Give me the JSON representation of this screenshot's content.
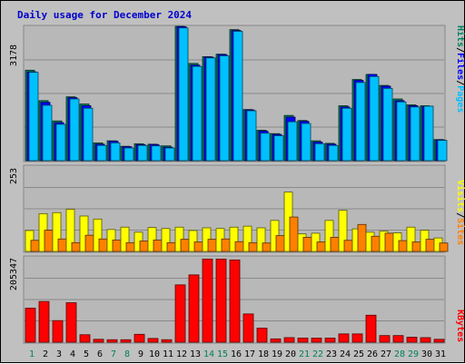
{
  "chart_data": {
    "type": "bar",
    "title": "Daily usage for December 2024",
    "categories": [
      "1",
      "2",
      "3",
      "4",
      "5",
      "6",
      "7",
      "8",
      "9",
      "10",
      "11",
      "12",
      "13",
      "14",
      "15",
      "16",
      "17",
      "18",
      "19",
      "20",
      "21",
      "22",
      "23",
      "24",
      "25",
      "26",
      "27",
      "28",
      "29",
      "30",
      "31"
    ],
    "weekend_days": [
      "1",
      "7",
      "8",
      "14",
      "15",
      "21",
      "22",
      "28",
      "29"
    ],
    "panels": [
      {
        "id": "top",
        "ymax_label": "3178",
        "ylim": [
          0,
          3178
        ],
        "right_label": [
          {
            "text": "Hits",
            "color": "#00805c"
          },
          {
            "text": "/",
            "color": "#000000"
          },
          {
            "text": "Files",
            "color": "#0000ff"
          },
          {
            "text": "/",
            "color": "#000000"
          },
          {
            "text": "Pages",
            "color": "#00c0ff"
          }
        ],
        "series": [
          {
            "name": "Hits",
            "color": "#00805c",
            "values": [
              2140,
              1420,
              940,
              1510,
              1340,
              420,
              470,
              340,
              400,
              390,
              350,
              3178,
              2300,
              2460,
              2520,
              3100,
              1210,
              720,
              640,
              1070,
              950,
              470,
              410,
              1300,
              1920,
              2040,
              1780,
              1460,
              1320,
              1300,
              500
            ]
          },
          {
            "name": "Files",
            "color": "#0000ff",
            "values": [
              2100,
              1380,
              900,
              1490,
              1300,
              390,
              460,
              330,
              380,
              380,
              320,
              3170,
              2260,
              2450,
              2510,
              3080,
              1200,
              700,
              620,
              1030,
              930,
              440,
              390,
              1270,
              1900,
              2040,
              1760,
              1420,
              1300,
              1280,
              490
            ]
          },
          {
            "name": "Pages",
            "color": "#00c0ff",
            "values": [
              2090,
              1310,
              860,
              1460,
              1240,
              360,
              420,
              300,
              360,
              350,
              300,
              3140,
              2230,
              2430,
              2480,
              3060,
              1180,
              650,
              590,
              920,
              880,
              400,
              360,
              1240,
              1850,
              1990,
              1710,
              1390,
              1270,
              1290,
              480
            ]
          }
        ]
      },
      {
        "id": "middle",
        "ymax_label": "253",
        "ylim": [
          0,
          253
        ],
        "right_label": [
          {
            "text": "Visits",
            "color": "#ffff00"
          },
          {
            "text": "/",
            "color": "#000000"
          },
          {
            "text": "Sites",
            "color": "#ff8000"
          }
        ],
        "series": [
          {
            "name": "Visits",
            "color": "#ffff00",
            "values": [
              62,
              112,
              115,
              125,
              105,
              96,
              65,
              72,
              57,
              71,
              68,
              72,
              62,
              70,
              68,
              72,
              75,
              70,
              92,
              176,
              52,
              54,
              92,
              122,
              67,
              57,
              60,
              55,
              72,
              63,
              40
            ]
          },
          {
            "name": "Sites",
            "color": "#ff8000",
            "values": [
              33,
              63,
              37,
              26,
              48,
              37,
              34,
              26,
              31,
              34,
              26,
              36,
              28,
              36,
              37,
              29,
              26,
              25,
              47,
              102,
              42,
              28,
              42,
              33,
              80,
              45,
              54,
              32,
              28,
              36,
              25
            ]
          }
        ]
      },
      {
        "id": "bottom",
        "ymax_label": "205347",
        "ylim": [
          0,
          205347
        ],
        "right_label": [
          {
            "text": "KBytes",
            "color": "#ff0000"
          }
        ],
        "series": [
          {
            "name": "KBytes",
            "color": "#ff0000",
            "values": [
              82000,
              98000,
              52000,
              95000,
              18000,
              7000,
              6000,
              6000,
              19000,
              9000,
              6000,
              138000,
              162000,
              200000,
              200000,
              198000,
              68000,
              34000,
              8000,
              11000,
              10000,
              10000,
              10000,
              20000,
              20000,
              65000,
              16000,
              16000,
              12000,
              11000,
              7000
            ]
          }
        ]
      }
    ]
  }
}
